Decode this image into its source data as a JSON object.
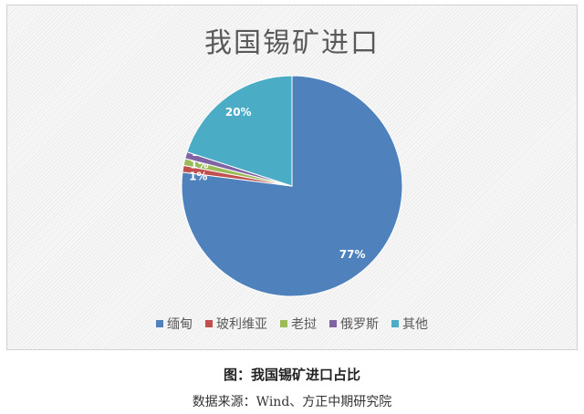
{
  "chart_data": {
    "type": "pie",
    "title": "我国锡矿进口",
    "categories": [
      "缅甸",
      "玻利维亚",
      "老挝",
      "俄罗斯",
      "其他"
    ],
    "values": [
      77,
      1,
      1,
      1,
      20
    ],
    "data_labels": [
      "77%",
      "1%",
      "1%",
      "1%",
      "20%"
    ],
    "colors": [
      "#4f81bd",
      "#c0504d",
      "#9bbb59",
      "#8064a2",
      "#4bacc6"
    ],
    "start_angle": "top",
    "direction": "clockwise",
    "legend_position": "bottom"
  },
  "caption": "图：我国锡矿进口占比",
  "source": "数据来源：Wind、方正中期研究院"
}
